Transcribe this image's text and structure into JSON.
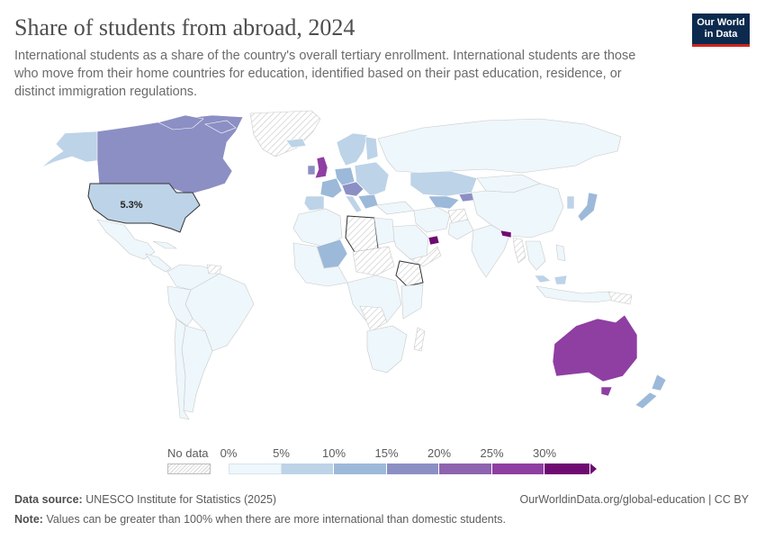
{
  "header": {
    "title": "Share of students from abroad, 2024",
    "subtitle": "International students as a share of the country's overall tertiary enrollment. International students are those who move from their home countries for education, identified based on their past education, residence, or distinct immigration regulations."
  },
  "logo": {
    "line1": "Our World",
    "line2": "in Data"
  },
  "map": {
    "annotation_label": "5.3%",
    "annotation_country": "United States",
    "regions": [
      {
        "name": "United States",
        "value_pct": 5.3
      },
      {
        "name": "Canada",
        "value_pct": 17
      },
      {
        "name": "Australia",
        "value_pct": 27
      },
      {
        "name": "United Kingdom",
        "value_pct": 24
      },
      {
        "name": "United Arab Emirates",
        "value_pct": 33
      },
      {
        "name": "Nepal",
        "value_pct": 32
      },
      {
        "name": "New Zealand",
        "value_pct": 11
      },
      {
        "name": "Russia",
        "value_pct": 3
      },
      {
        "name": "Kazakhstan",
        "value_pct": 7
      },
      {
        "name": "Brazil",
        "value_pct": 0.5
      },
      {
        "name": "China",
        "value_pct": 0.5
      },
      {
        "name": "India",
        "value_pct": 0.2
      },
      {
        "name": "Japan",
        "value_pct": 6
      },
      {
        "name": "Argentina",
        "value_pct": 3
      },
      {
        "name": "South Africa",
        "value_pct": 3
      },
      {
        "name": "Mexico",
        "value_pct": 0.5
      },
      {
        "name": "Mali",
        "value_pct": 8
      }
    ]
  },
  "legend": {
    "no_data_label": "No data",
    "ticks": [
      "0%",
      "5%",
      "10%",
      "15%",
      "20%",
      "25%",
      "30%"
    ],
    "bin_colors": [
      "#eef7fb",
      "#bdd3e7",
      "#9cb9d9",
      "#8c8fc4",
      "#8e63b0",
      "#8f3ea2",
      "#6e0a72"
    ]
  },
  "footer": {
    "source_label": "Data source:",
    "source_text": "UNESCO Institute for Statistics (2025)",
    "credit": "OurWorldinData.org/global-education | CC BY",
    "note_label": "Note:",
    "note_text": "Values can be greater than 100% when there are more international than domestic students."
  },
  "colors": {
    "no_data_stroke": "#c9c9c9",
    "border": "#ffffff",
    "ocean": "#ffffff"
  }
}
